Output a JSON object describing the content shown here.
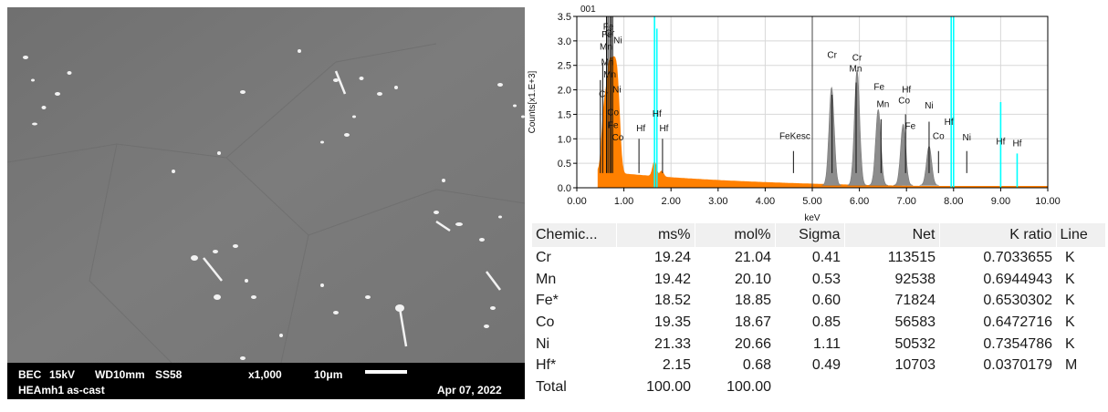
{
  "sem": {
    "mode": "BEC",
    "voltage": "15kV",
    "working_distance": "WD10mm",
    "spot_size": "SS58",
    "magnification": "x1,000",
    "scale": "10μm",
    "sample": "HEAmh1 as-cast",
    "date": "Apr 07, 2022"
  },
  "spectrum": {
    "tag": "001",
    "ylabel": "Counts[x1.E+3]",
    "xlabel": "keV",
    "x_ticks": [
      "0.00",
      "1.00",
      "2.00",
      "3.00",
      "4.00",
      "5.00",
      "6.00",
      "7.00",
      "8.00",
      "9.00",
      "10.00"
    ],
    "y_ticks": [
      "0.0",
      "0.5",
      "1.0",
      "1.5",
      "2.0",
      "2.5",
      "3.0",
      "3.5"
    ],
    "peak_labels": [
      {
        "text": "Cr",
        "x": 5.42,
        "y": 2.65
      },
      {
        "text": "Cr",
        "x": 5.95,
        "y": 2.6
      },
      {
        "text": "Mn",
        "x": 5.92,
        "y": 2.37
      },
      {
        "text": "Fe",
        "x": 6.42,
        "y": 2.0
      },
      {
        "text": "Mn",
        "x": 6.5,
        "y": 1.65
      },
      {
        "text": "Hf",
        "x": 7.0,
        "y": 1.95
      },
      {
        "text": "Co",
        "x": 6.95,
        "y": 1.72
      },
      {
        "text": "Fe",
        "x": 7.08,
        "y": 1.2
      },
      {
        "text": "Ni",
        "x": 7.48,
        "y": 1.62
      },
      {
        "text": "Co",
        "x": 7.68,
        "y": 1.0
      },
      {
        "text": "Hf",
        "x": 7.9,
        "y": 1.28
      },
      {
        "text": "Ni",
        "x": 8.28,
        "y": 0.97
      },
      {
        "text": "Hf",
        "x": 9.0,
        "y": 0.88
      },
      {
        "text": "Hf",
        "x": 9.35,
        "y": 0.85
      },
      {
        "text": "FeKesc",
        "x": 4.63,
        "y": 1.0
      },
      {
        "text": "Hf",
        "x": 1.36,
        "y": 1.15
      },
      {
        "text": "Hf",
        "x": 1.85,
        "y": 1.15
      },
      {
        "text": "Hf",
        "x": 1.7,
        "y": 1.45
      },
      {
        "text": "Co",
        "x": 0.87,
        "y": 0.97
      },
      {
        "text": "Fe",
        "x": 0.77,
        "y": 1.22
      },
      {
        "text": "Co",
        "x": 0.77,
        "y": 1.48
      },
      {
        "text": "Cr",
        "x": 0.57,
        "y": 1.85
      },
      {
        "text": "Ni",
        "x": 0.85,
        "y": 1.95
      },
      {
        "text": "Mn",
        "x": 0.7,
        "y": 2.25
      },
      {
        "text": "Mn",
        "x": 0.65,
        "y": 2.5
      },
      {
        "text": "Mn",
        "x": 0.62,
        "y": 2.82
      },
      {
        "text": "Cr",
        "x": 0.7,
        "y": 3.1
      },
      {
        "text": "Fe",
        "x": 0.67,
        "y": 3.23
      },
      {
        "text": "Ni",
        "x": 0.87,
        "y": 2.95
      },
      {
        "text": "Fe",
        "x": 0.64,
        "y": 3.07
      }
    ],
    "colors": {
      "bremsstrahlung": "#ff8000",
      "peaks": "#8c8c8c",
      "markers": "#00ffff",
      "frame": "#000000"
    }
  },
  "table": {
    "headers": [
      "Chemic...",
      "ms%",
      "mol%",
      "Sigma",
      "Net",
      "K ratio",
      "Line"
    ],
    "rows": [
      [
        "Cr",
        "19.24",
        "21.04",
        "0.41",
        "113515",
        "0.7033655",
        "K"
      ],
      [
        "Mn",
        "19.42",
        "20.10",
        "0.53",
        "92538",
        "0.6944943",
        "K"
      ],
      [
        "Fe*",
        "18.52",
        "18.85",
        "0.60",
        "71824",
        "0.6530302",
        "K"
      ],
      [
        "Co",
        "19.35",
        "18.67",
        "0.85",
        "56583",
        "0.6472716",
        "K"
      ],
      [
        "Ni",
        "21.33",
        "20.66",
        "1.11",
        "50532",
        "0.7354786",
        "K"
      ],
      [
        "Hf*",
        "2.15",
        "0.68",
        "0.49",
        "10703",
        "0.0370179",
        "M"
      ],
      [
        "Total",
        "100.00",
        "100.00",
        "",
        "",
        "",
        ""
      ]
    ]
  }
}
